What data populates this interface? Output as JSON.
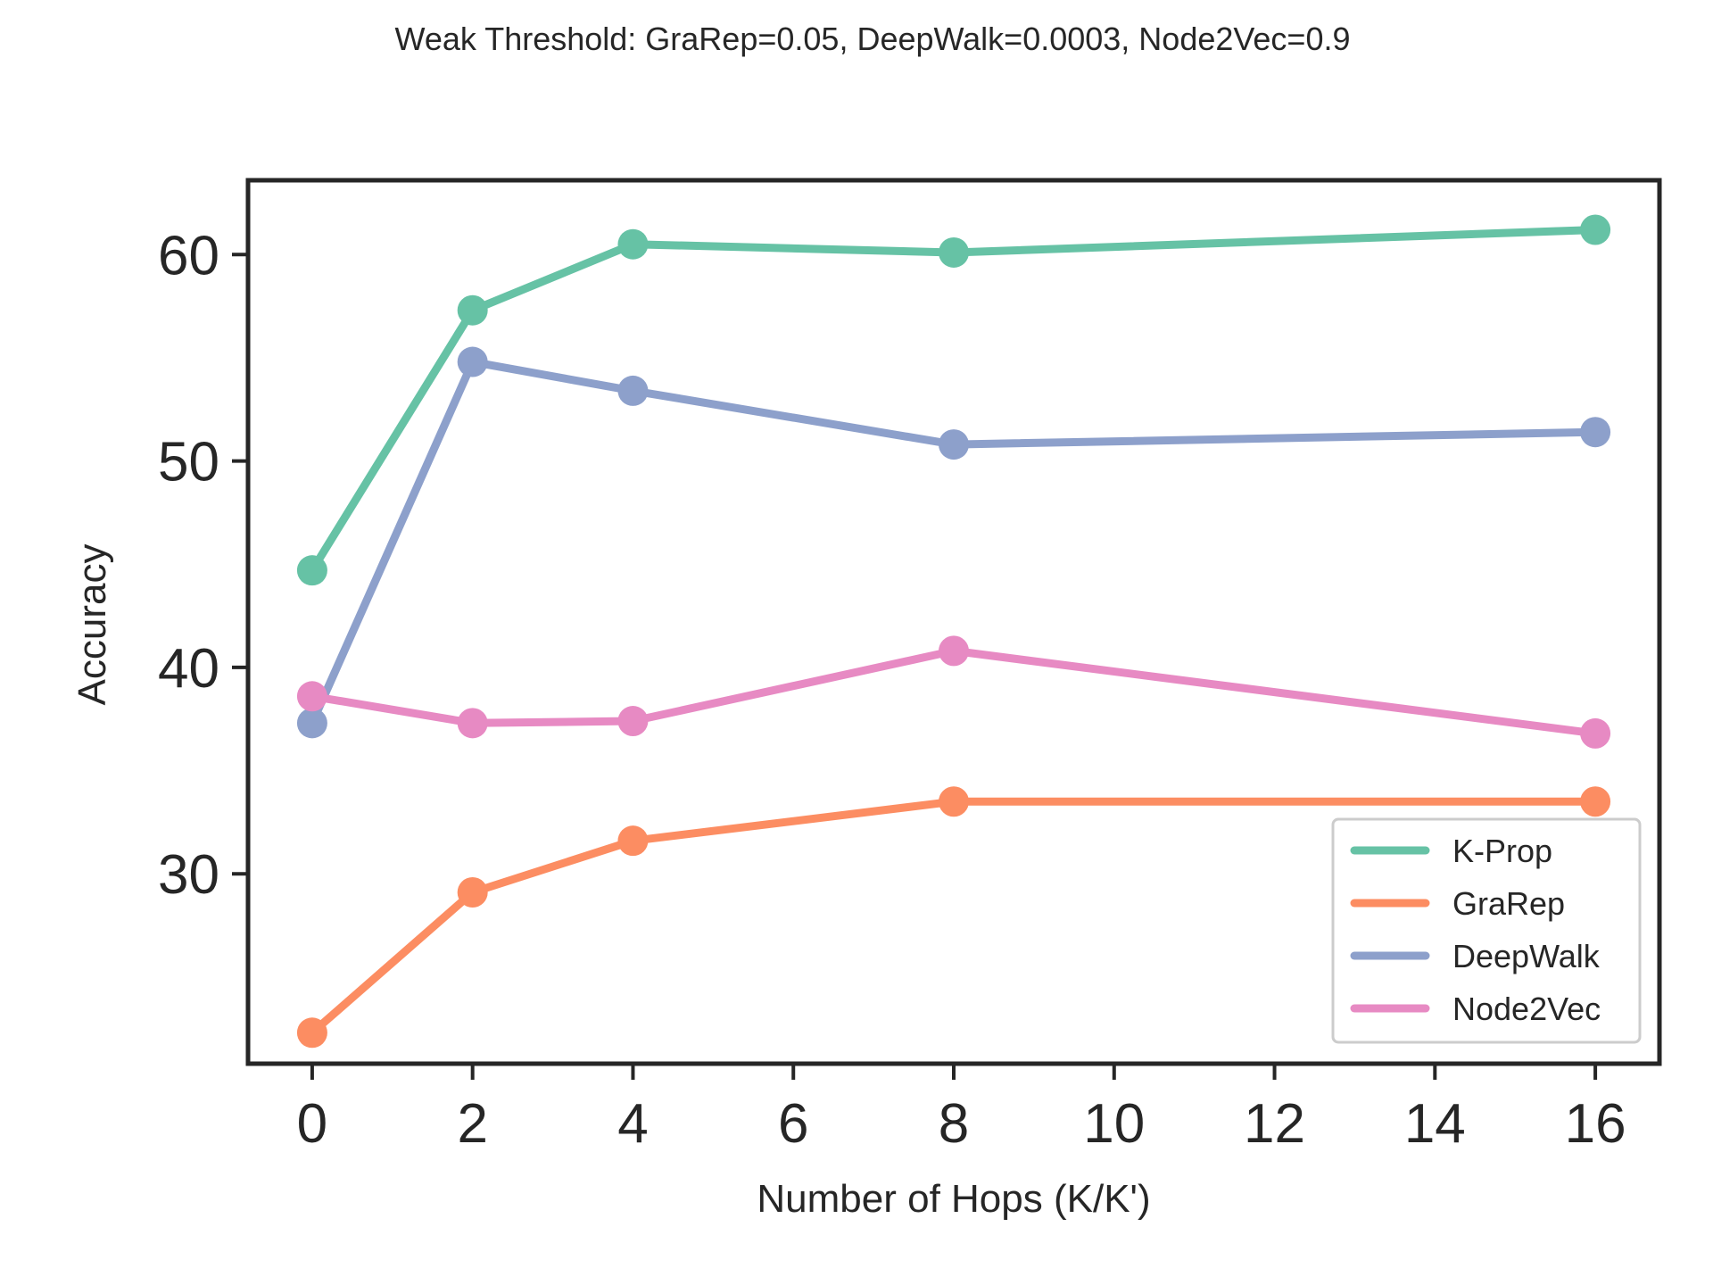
{
  "chart_data": {
    "type": "line",
    "title": "Weak Threshold: GraRep=0.05, DeepWalk=0.0003, Node2Vec=0.9",
    "xlabel": "Number of Hops (K/K')",
    "ylabel": "Accuracy",
    "x": [
      0,
      2,
      4,
      8,
      16
    ],
    "xlim": [
      -0.8,
      16.8
    ],
    "ylim": [
      20.8,
      63.6
    ],
    "xticks": [
      0,
      2,
      4,
      6,
      8,
      10,
      12,
      14,
      16
    ],
    "yticks": [
      30,
      40,
      50,
      60
    ],
    "grid": false,
    "legend_position": "lower-right",
    "series": [
      {
        "name": "K-Prop",
        "color": "#66c2a5",
        "values": [
          44.7,
          57.3,
          60.5,
          60.1,
          61.2
        ]
      },
      {
        "name": "GraRep",
        "color": "#fc8d62",
        "values": [
          22.3,
          29.1,
          31.6,
          33.5,
          33.5
        ]
      },
      {
        "name": "DeepWalk",
        "color": "#8da0cb",
        "values": [
          37.3,
          54.8,
          53.4,
          50.8,
          51.4
        ]
      },
      {
        "name": "Node2Vec",
        "color": "#e78ac3",
        "values": [
          38.6,
          37.3,
          37.4,
          40.8,
          36.8
        ]
      }
    ]
  }
}
